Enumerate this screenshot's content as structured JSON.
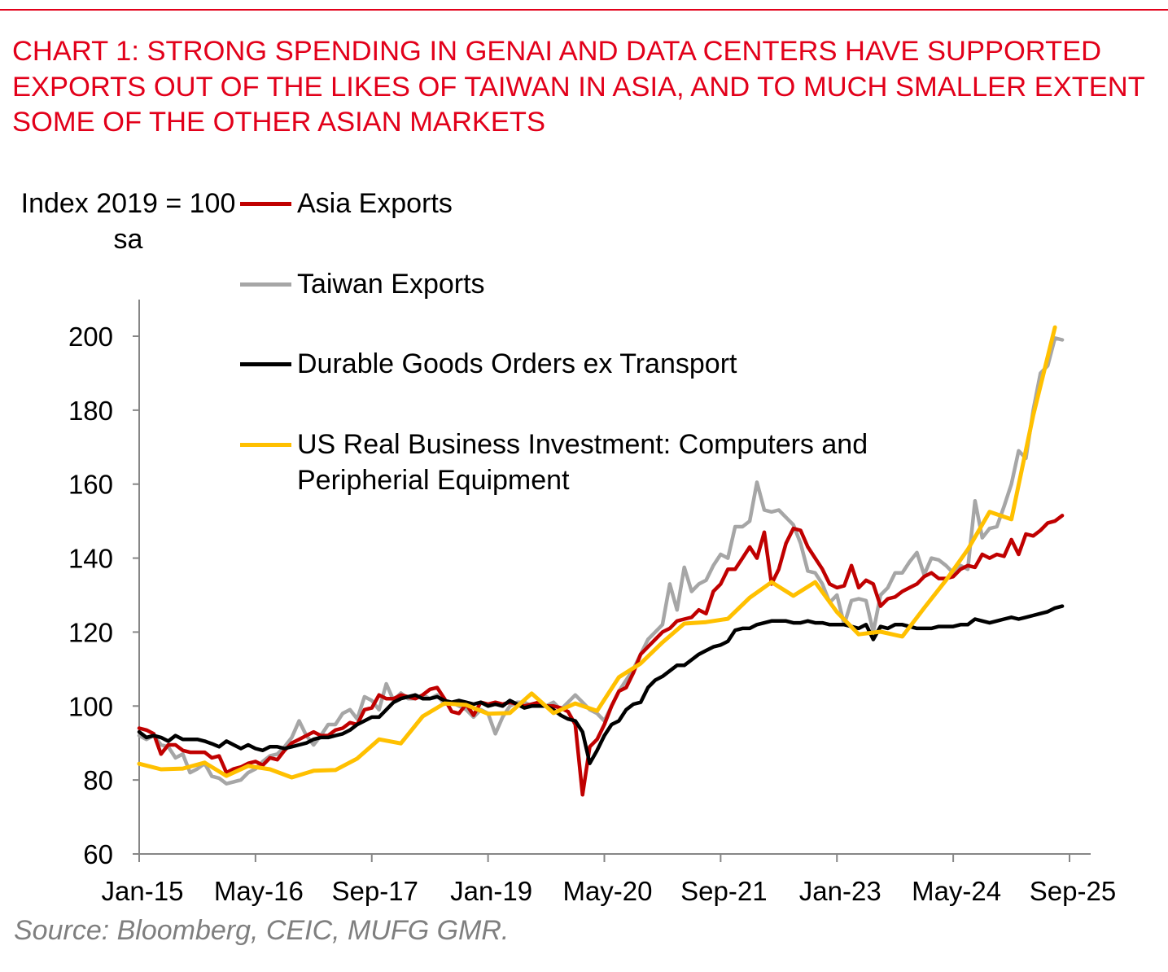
{
  "chart_data": {
    "type": "line",
    "title": "CHART 1: STRONG SPENDING IN GENAI AND DATA CENTERS HAVE SUPPORTED EXPORTS OUT OF THE LIKES OF TAIWAN IN ASIA, AND TO MUCH SMALLER EXTENT SOME OF THE OTHER ASIAN MARKETS",
    "ylabel": "Index 2019 = 100 sa",
    "xlabel": "",
    "ylim": [
      60,
      200
    ],
    "yticks": [
      60,
      80,
      100,
      120,
      140,
      160,
      180,
      200
    ],
    "xticks": [
      "Jan-15",
      "May-16",
      "Sep-17",
      "Jan-19",
      "May-20",
      "Sep-21",
      "Jan-23",
      "May-24",
      "Sep-25"
    ],
    "xtick_dates": [
      "2015-01",
      "2016-05",
      "2017-09",
      "2019-01",
      "2020-05",
      "2021-09",
      "2023-01",
      "2024-05",
      "2025-09"
    ],
    "xlim": [
      "2015-01",
      "2025-09"
    ],
    "grid": false,
    "legend_placement": "top-left",
    "source": "Source: Bloomberg, CEIC, MUFG GMR.",
    "series": [
      {
        "name": "Asia Exports",
        "color": "#c00000",
        "start": "2015-01",
        "frequency": "monthly",
        "values": [
          94,
          93.5,
          92.5,
          87,
          89.5,
          89.5,
          88,
          87.5,
          87.5,
          87.5,
          86,
          86.5,
          82,
          83,
          83.5,
          84.5,
          85,
          84,
          86,
          85.5,
          88,
          90,
          91,
          92,
          93,
          92,
          92,
          93.5,
          94,
          95.5,
          95,
          99,
          99.5,
          103,
          102,
          102,
          103,
          102.5,
          102,
          103,
          104.5,
          105,
          102,
          98.5,
          98,
          100.5,
          97.5,
          101,
          100.5,
          101,
          100.5,
          101,
          100.5,
          100,
          100.5,
          101,
          100,
          100,
          99.5,
          98.5,
          95,
          76,
          89,
          91,
          95,
          100,
          104,
          105,
          109,
          114,
          116,
          118,
          120,
          121,
          123,
          123.5,
          124,
          126,
          125,
          131,
          133,
          137,
          137,
          140,
          143,
          140,
          147,
          133,
          137,
          144,
          148,
          147.5,
          143,
          140,
          137,
          133,
          132,
          132.5,
          138,
          132,
          134,
          133,
          127,
          129,
          129.5,
          131,
          132,
          133,
          135,
          136,
          134.5,
          134.5,
          135,
          137,
          138,
          137.5,
          141,
          140,
          141,
          140.5,
          145,
          141,
          146.5,
          146,
          147.5,
          149.5,
          150,
          151.5
        ]
      },
      {
        "name": "Taiwan Exports",
        "color": "#a6a6a6",
        "start": "2015-01",
        "frequency": "monthly",
        "values": [
          92,
          91,
          92,
          89.5,
          89,
          86,
          87,
          82,
          83,
          84.5,
          81,
          80.5,
          79,
          79.5,
          80,
          82,
          83,
          85,
          86.5,
          87,
          89,
          91.5,
          96,
          92,
          89.5,
          92,
          95,
          95,
          98,
          99,
          96.5,
          102.5,
          101.5,
          99,
          106,
          101.5,
          103.5,
          102,
          102,
          103,
          102,
          103,
          100.5,
          101,
          100,
          99,
          97,
          99,
          98,
          92.5,
          97,
          100,
          101,
          101,
          100,
          101,
          100,
          101,
          99,
          101,
          103,
          101,
          99,
          98,
          96,
          100,
          104,
          107,
          110,
          114,
          118,
          120,
          122,
          133,
          126,
          137.5,
          131,
          133,
          134,
          138,
          141,
          140,
          148.5,
          148.5,
          150,
          160.5,
          153,
          152.5,
          153,
          151,
          149,
          144,
          136.5,
          136,
          133,
          128,
          130,
          122,
          128.5,
          129,
          128.5,
          120,
          130,
          132,
          136,
          136,
          139,
          141.5,
          135.5,
          140,
          139.5,
          138,
          136,
          138,
          137,
          155.5,
          145.5,
          148,
          148.5,
          154,
          160,
          169,
          167,
          180,
          190,
          192,
          199.5,
          199
        ]
      },
      {
        "name": "Durable Goods Orders ex Transport",
        "color": "#000000",
        "start": "2015-01",
        "frequency": "monthly",
        "values": [
          93,
          91.5,
          92,
          91.5,
          90.5,
          92,
          91,
          91,
          91,
          90.5,
          89.8,
          89,
          90.5,
          89.5,
          88.5,
          89.5,
          88.5,
          88,
          89,
          89,
          88.5,
          89,
          89.5,
          90,
          91,
          91.5,
          91.5,
          92,
          92.5,
          93.5,
          95,
          96,
          97,
          97,
          99,
          101,
          102,
          102.5,
          103,
          102,
          102,
          102.5,
          101.5,
          101,
          101.5,
          101,
          100.5,
          101,
          100,
          100.5,
          100,
          101.5,
          100.5,
          99.5,
          100,
          100,
          100,
          99,
          97.5,
          96.5,
          96,
          93,
          84.5,
          88,
          92,
          95,
          96,
          99,
          100.5,
          101,
          105,
          107,
          108,
          109.5,
          111,
          111,
          112.5,
          114,
          115,
          116,
          116.5,
          117.5,
          120.5,
          121,
          121,
          122,
          122.5,
          123,
          123,
          123,
          122.5,
          122.5,
          123,
          122.5,
          122.5,
          122,
          122,
          122,
          121.5,
          121,
          122,
          118,
          121.5,
          121,
          122,
          122,
          121.5,
          121,
          121,
          121,
          121.5,
          121.5,
          121.5,
          122,
          122,
          123.5,
          123,
          122.5,
          123,
          123.5,
          124,
          123.5,
          124,
          124.5,
          125,
          125.5,
          126.5,
          127
        ]
      },
      {
        "name": "US Real Business Investment: Computers and Peripherial Equipment",
        "color": "#ffc000",
        "start": "2015-01",
        "frequency": "quarterly",
        "values": [
          84.4,
          82.9,
          83.1,
          84.7,
          81.1,
          83.8,
          82.9,
          80.7,
          82.5,
          82.7,
          85.8,
          91,
          89.9,
          97.2,
          100.7,
          100.3,
          97.9,
          98.1,
          103.4,
          98.1,
          100.7,
          98.7,
          107.8,
          111.5,
          117.2,
          122.3,
          122.7,
          123.6,
          129.3,
          133.5,
          129.8,
          133.5,
          125.4,
          119.4,
          120.1,
          118.8,
          126.5,
          134,
          142.3,
          152.5,
          150.5,
          178.6,
          202.4
        ]
      }
    ]
  }
}
